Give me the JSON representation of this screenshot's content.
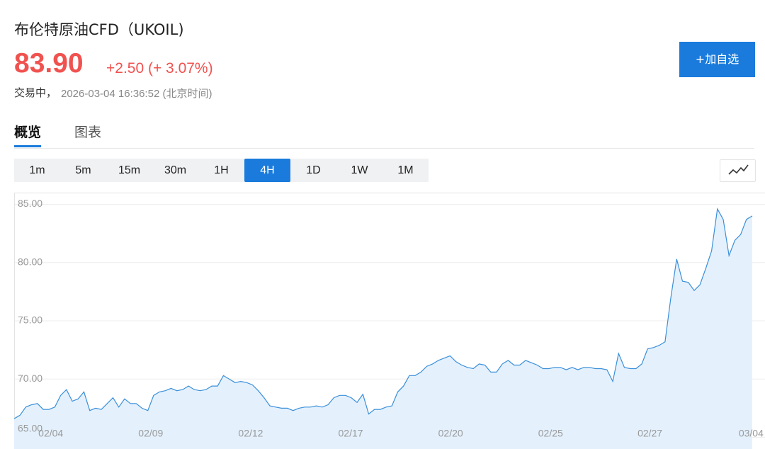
{
  "header": {
    "title": "布伦特原油CFD（UKOIL)",
    "price": "83.90",
    "change": "+2.50 (+ 3.07%)",
    "status": "交易中，",
    "time": "2026-03-04 16:36:52 (北京时间)",
    "watch_button": "+加自选"
  },
  "tabs": [
    "概览",
    "图表"
  ],
  "intervals": [
    "1m",
    "5m",
    "15m",
    "30m",
    "1H",
    "4H",
    "1D",
    "1W",
    "1M"
  ],
  "chart_data": {
    "type": "area",
    "color": "#3b8fd9",
    "area_color": "#e4f1fd",
    "grid": true,
    "values": [
      66.6,
      66.9,
      67.6,
      67.8,
      67.9,
      67.4,
      67.4,
      67.6,
      68.6,
      69.1,
      68.1,
      68.3,
      68.9,
      67.3,
      67.5,
      67.4,
      67.9,
      68.4,
      67.6,
      68.3,
      67.9,
      67.9,
      67.5,
      67.3,
      68.6,
      68.9,
      69.0,
      69.2,
      69.0,
      69.1,
      69.4,
      69.1,
      69.0,
      69.1,
      69.4,
      69.4,
      70.3,
      70.0,
      69.7,
      69.8,
      69.7,
      69.5,
      69.0,
      68.4,
      67.7,
      67.6,
      67.5,
      67.5,
      67.3,
      67.5,
      67.6,
      67.6,
      67.7,
      67.6,
      67.8,
      68.4,
      68.6,
      68.6,
      68.4,
      68.0,
      68.7,
      67.0,
      67.4,
      67.4,
      67.6,
      67.7,
      68.9,
      69.4,
      70.3,
      70.3,
      70.6,
      71.1,
      71.3,
      71.6,
      71.8,
      72.0,
      71.5,
      71.2,
      71.0,
      70.9,
      71.3,
      71.2,
      70.6,
      70.6,
      71.3,
      71.6,
      71.2,
      71.2,
      71.6,
      71.4,
      71.2,
      70.9,
      70.9,
      71.0,
      71.0,
      70.8,
      71.0,
      70.8,
      71.0,
      71.0,
      70.9,
      70.9,
      70.8,
      69.8,
      72.2,
      71.0,
      70.9,
      70.9,
      71.3,
      72.6,
      72.7,
      72.9,
      73.2,
      77.0,
      80.3,
      78.4,
      78.3,
      77.6,
      78.1,
      79.5,
      81.0,
      84.6,
      83.7,
      80.6,
      81.9,
      82.4,
      83.7,
      84.0
    ],
    "xlim": [
      0,
      127
    ],
    "xticks": [
      {
        "value": 6.3,
        "label": "02/04"
      },
      {
        "value": 23.5,
        "label": "02/09"
      },
      {
        "value": 40.7,
        "label": "02/12"
      },
      {
        "value": 57.9,
        "label": "02/17"
      },
      {
        "value": 75.1,
        "label": "02/20"
      },
      {
        "value": 92.3,
        "label": "02/25"
      },
      {
        "value": 109.4,
        "label": "02/27"
      },
      {
        "value": 126.8,
        "label": "03/04"
      }
    ],
    "ylim": [
      64,
      86
    ],
    "yticks": [
      {
        "value": 65,
        "label": "65.00"
      },
      {
        "value": 70,
        "label": "70.00"
      },
      {
        "value": 75,
        "label": "75.00"
      },
      {
        "value": 80,
        "label": "80.00"
      },
      {
        "value": 85,
        "label": "85.00"
      }
    ]
  }
}
